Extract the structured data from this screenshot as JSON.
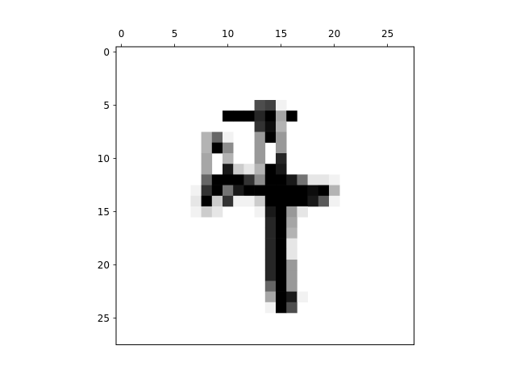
{
  "chart_data": {
    "type": "heatmap",
    "title": "",
    "xlabel": "",
    "ylabel": "",
    "colormap": "gray_r",
    "xlim": [
      -0.5,
      27.5
    ],
    "ylim": [
      27.5,
      -0.5
    ],
    "x_axis_position": "top",
    "grid": false,
    "x_ticks": [
      0,
      5,
      10,
      15,
      20,
      25
    ],
    "y_ticks": [
      0,
      5,
      10,
      15,
      20,
      25
    ],
    "x_tick_labels": [
      "0",
      "5",
      "10",
      "15",
      "20",
      "25"
    ],
    "y_tick_labels": [
      "0",
      "5",
      "10",
      "15",
      "20",
      "25"
    ],
    "rows": 28,
    "cols": 28,
    "pixels": [
      {
        "r": 5,
        "c": 13,
        "v": 0.7
      },
      {
        "r": 5,
        "c": 14,
        "v": 0.75
      },
      {
        "r": 5,
        "c": 15,
        "v": 0.05
      },
      {
        "r": 6,
        "c": 10,
        "v": 1.0
      },
      {
        "r": 6,
        "c": 11,
        "v": 1.0
      },
      {
        "r": 6,
        "c": 12,
        "v": 1.0
      },
      {
        "r": 6,
        "c": 13,
        "v": 0.85
      },
      {
        "r": 6,
        "c": 14,
        "v": 1.0
      },
      {
        "r": 6,
        "c": 15,
        "v": 0.35
      },
      {
        "r": 6,
        "c": 16,
        "v": 1.0
      },
      {
        "r": 7,
        "c": 13,
        "v": 0.8
      },
      {
        "r": 7,
        "c": 14,
        "v": 0.95
      },
      {
        "r": 7,
        "c": 15,
        "v": 0.3
      },
      {
        "r": 8,
        "c": 8,
        "v": 0.3
      },
      {
        "r": 8,
        "c": 9,
        "v": 0.6
      },
      {
        "r": 8,
        "c": 10,
        "v": 0.05
      },
      {
        "r": 8,
        "c": 13,
        "v": 0.4
      },
      {
        "r": 8,
        "c": 14,
        "v": 1.0
      },
      {
        "r": 8,
        "c": 15,
        "v": 0.4
      },
      {
        "r": 9,
        "c": 8,
        "v": 0.3
      },
      {
        "r": 9,
        "c": 9,
        "v": 1.0
      },
      {
        "r": 9,
        "c": 10,
        "v": 0.45
      },
      {
        "r": 9,
        "c": 13,
        "v": 0.4
      },
      {
        "r": 9,
        "c": 15,
        "v": 0.4
      },
      {
        "r": 10,
        "c": 8,
        "v": 0.35
      },
      {
        "r": 10,
        "c": 10,
        "v": 0.3
      },
      {
        "r": 10,
        "c": 13,
        "v": 0.4
      },
      {
        "r": 10,
        "c": 15,
        "v": 0.85
      },
      {
        "r": 11,
        "c": 8,
        "v": 0.35
      },
      {
        "r": 11,
        "c": 10,
        "v": 0.9
      },
      {
        "r": 11,
        "c": 11,
        "v": 0.2
      },
      {
        "r": 11,
        "c": 12,
        "v": 0.1
      },
      {
        "r": 11,
        "c": 13,
        "v": 0.3
      },
      {
        "r": 11,
        "c": 14,
        "v": 1.0
      },
      {
        "r": 11,
        "c": 15,
        "v": 0.9
      },
      {
        "r": 12,
        "c": 8,
        "v": 0.6
      },
      {
        "r": 12,
        "c": 9,
        "v": 1.0
      },
      {
        "r": 12,
        "c": 10,
        "v": 1.0
      },
      {
        "r": 12,
        "c": 11,
        "v": 1.0
      },
      {
        "r": 12,
        "c": 12,
        "v": 0.8
      },
      {
        "r": 12,
        "c": 13,
        "v": 0.45
      },
      {
        "r": 12,
        "c": 14,
        "v": 1.0
      },
      {
        "r": 12,
        "c": 15,
        "v": 1.0
      },
      {
        "r": 12,
        "c": 16,
        "v": 0.9
      },
      {
        "r": 12,
        "c": 17,
        "v": 0.55
      },
      {
        "r": 12,
        "c": 18,
        "v": 0.1
      },
      {
        "r": 12,
        "c": 19,
        "v": 0.1
      },
      {
        "r": 12,
        "c": 20,
        "v": 0.05
      },
      {
        "r": 13,
        "c": 7,
        "v": 0.05
      },
      {
        "r": 13,
        "c": 8,
        "v": 0.8
      },
      {
        "r": 13,
        "c": 9,
        "v": 1.0
      },
      {
        "r": 13,
        "c": 10,
        "v": 0.55
      },
      {
        "r": 13,
        "c": 11,
        "v": 0.9
      },
      {
        "r": 13,
        "c": 12,
        "v": 1.0
      },
      {
        "r": 13,
        "c": 13,
        "v": 1.0
      },
      {
        "r": 13,
        "c": 14,
        "v": 1.0
      },
      {
        "r": 13,
        "c": 15,
        "v": 1.0
      },
      {
        "r": 13,
        "c": 16,
        "v": 1.0
      },
      {
        "r": 13,
        "c": 17,
        "v": 1.0
      },
      {
        "r": 13,
        "c": 18,
        "v": 0.95
      },
      {
        "r": 13,
        "c": 19,
        "v": 1.0
      },
      {
        "r": 13,
        "c": 20,
        "v": 0.3
      },
      {
        "r": 14,
        "c": 7,
        "v": 0.1
      },
      {
        "r": 14,
        "c": 8,
        "v": 1.0
      },
      {
        "r": 14,
        "c": 9,
        "v": 0.2
      },
      {
        "r": 14,
        "c": 10,
        "v": 0.8
      },
      {
        "r": 14,
        "c": 11,
        "v": 0.05
      },
      {
        "r": 14,
        "c": 12,
        "v": 0.05
      },
      {
        "r": 14,
        "c": 13,
        "v": 0.2
      },
      {
        "r": 14,
        "c": 14,
        "v": 1.0
      },
      {
        "r": 14,
        "c": 15,
        "v": 1.0
      },
      {
        "r": 14,
        "c": 16,
        "v": 1.0
      },
      {
        "r": 14,
        "c": 17,
        "v": 1.0
      },
      {
        "r": 14,
        "c": 18,
        "v": 0.9
      },
      {
        "r": 14,
        "c": 19,
        "v": 0.65
      },
      {
        "r": 14,
        "c": 20,
        "v": 0.05
      },
      {
        "r": 15,
        "c": 7,
        "v": 0.05
      },
      {
        "r": 15,
        "c": 8,
        "v": 0.2
      },
      {
        "r": 15,
        "c": 9,
        "v": 0.1
      },
      {
        "r": 15,
        "c": 13,
        "v": 0.05
      },
      {
        "r": 15,
        "c": 14,
        "v": 0.9
      },
      {
        "r": 15,
        "c": 15,
        "v": 1.0
      },
      {
        "r": 15,
        "c": 16,
        "v": 0.4
      },
      {
        "r": 15,
        "c": 17,
        "v": 0.1
      },
      {
        "r": 16,
        "c": 14,
        "v": 0.85
      },
      {
        "r": 16,
        "c": 15,
        "v": 1.0
      },
      {
        "r": 16,
        "c": 16,
        "v": 0.35
      },
      {
        "r": 17,
        "c": 14,
        "v": 0.85
      },
      {
        "r": 17,
        "c": 15,
        "v": 1.0
      },
      {
        "r": 17,
        "c": 16,
        "v": 0.3
      },
      {
        "r": 18,
        "c": 14,
        "v": 0.85
      },
      {
        "r": 18,
        "c": 15,
        "v": 1.0
      },
      {
        "r": 18,
        "c": 16,
        "v": 0.1
      },
      {
        "r": 19,
        "c": 14,
        "v": 0.85
      },
      {
        "r": 19,
        "c": 15,
        "v": 1.0
      },
      {
        "r": 19,
        "c": 16,
        "v": 0.1
      },
      {
        "r": 20,
        "c": 14,
        "v": 0.85
      },
      {
        "r": 20,
        "c": 15,
        "v": 1.0
      },
      {
        "r": 20,
        "c": 16,
        "v": 0.4
      },
      {
        "r": 21,
        "c": 14,
        "v": 0.85
      },
      {
        "r": 21,
        "c": 15,
        "v": 1.0
      },
      {
        "r": 21,
        "c": 16,
        "v": 0.4
      },
      {
        "r": 22,
        "c": 14,
        "v": 0.6
      },
      {
        "r": 22,
        "c": 15,
        "v": 1.0
      },
      {
        "r": 22,
        "c": 16,
        "v": 0.4
      },
      {
        "r": 23,
        "c": 14,
        "v": 0.35
      },
      {
        "r": 23,
        "c": 15,
        "v": 1.0
      },
      {
        "r": 23,
        "c": 16,
        "v": 0.9
      },
      {
        "r": 23,
        "c": 17,
        "v": 0.05
      },
      {
        "r": 24,
        "c": 14,
        "v": 0.05
      },
      {
        "r": 24,
        "c": 15,
        "v": 1.0
      },
      {
        "r": 24,
        "c": 16,
        "v": 0.7
      }
    ]
  }
}
